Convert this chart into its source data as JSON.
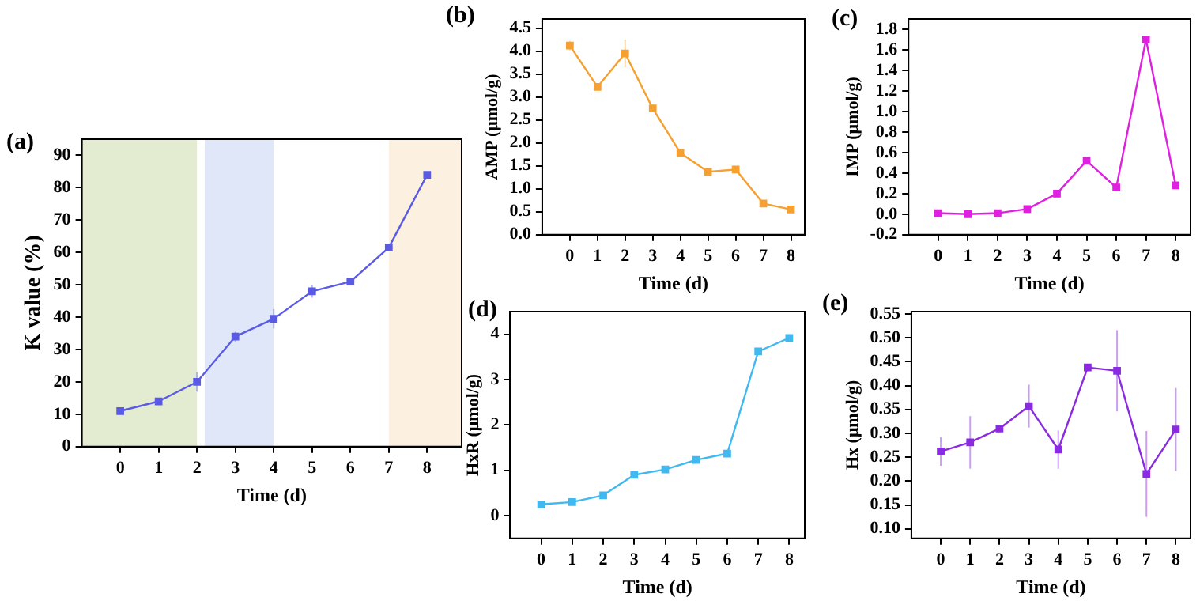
{
  "chart_data": [
    {
      "type": "line",
      "title": "(a)",
      "xlabel": "Time (d)",
      "ylabel": "K value (%)",
      "x": [
        0,
        1,
        2,
        3,
        4,
        5,
        6,
        7,
        8
      ],
      "xlim": [
        -1,
        8.9
      ],
      "xticks": [
        0,
        1,
        2,
        3,
        4,
        5,
        6,
        7,
        8
      ],
      "ylim": [
        0,
        95
      ],
      "yticks": [
        0,
        10,
        20,
        30,
        40,
        50,
        60,
        70,
        80,
        90
      ],
      "marker": "square",
      "grid": false,
      "legend": false,
      "series": [
        {
          "color": "#5a5ae6",
          "values": [
            11,
            14,
            20,
            34,
            39.5,
            48,
            51,
            61.5,
            84
          ],
          "errors": [
            1,
            1,
            3,
            1.5,
            3,
            2,
            1,
            1,
            0.5
          ]
        }
      ],
      "bands": [
        {
          "axis": "x",
          "from": -1,
          "to": 2,
          "color": "#e3ecd0"
        },
        {
          "axis": "x",
          "from": 2.2,
          "to": 4,
          "color": "#dfe7f8"
        },
        {
          "axis": "x",
          "from": 7,
          "to": 8.9,
          "color": "#fcf1e0"
        }
      ]
    },
    {
      "type": "line",
      "title": "(b)",
      "xlabel": "Time (d)",
      "ylabel": "AMP (μmol/g)",
      "x": [
        0,
        1,
        2,
        3,
        4,
        5,
        6,
        7,
        8
      ],
      "xlim": [
        -1,
        8.5
      ],
      "xticks": [
        0,
        1,
        2,
        3,
        4,
        5,
        6,
        7,
        8
      ],
      "ylim": [
        0,
        4.7
      ],
      "yticks": [
        {
          "value": 0,
          "label": "0.0"
        },
        {
          "value": 0.5,
          "label": "0.5"
        },
        {
          "value": 1,
          "label": "1.0"
        },
        {
          "value": 1.5,
          "label": "1.5"
        },
        {
          "value": 2,
          "label": "2.0"
        },
        {
          "value": 2.5,
          "label": "2.5"
        },
        {
          "value": 3,
          "label": "3.0"
        },
        {
          "value": 3.5,
          "label": "3.5"
        },
        {
          "value": 4,
          "label": "4.0"
        },
        {
          "value": 4.5,
          "label": "4.5"
        }
      ],
      "marker": "square",
      "grid": false,
      "legend": false,
      "series": [
        {
          "color": "#f5a030",
          "values": [
            4.12,
            3.22,
            3.95,
            2.75,
            1.78,
            1.37,
            1.42,
            0.68,
            0.55
          ],
          "errors": [
            0.1,
            0.05,
            0.3,
            0.08,
            0.08,
            0.05,
            0.06,
            0.05,
            0.04
          ]
        }
      ]
    },
    {
      "type": "line",
      "title": "(c)",
      "xlabel": "Time (d)",
      "ylabel": "IMP (μmol/g)",
      "x": [
        0,
        1,
        2,
        3,
        4,
        5,
        6,
        7,
        8
      ],
      "xlim": [
        -1,
        8.5
      ],
      "xticks": [
        0,
        1,
        2,
        3,
        4,
        5,
        6,
        7,
        8
      ],
      "ylim": [
        -0.2,
        1.9
      ],
      "yticks": [
        {
          "value": -0.2,
          "label": "-0.2"
        },
        {
          "value": 0,
          "label": "0.0"
        },
        {
          "value": 0.2,
          "label": "0.2"
        },
        {
          "value": 0.4,
          "label": "0.4"
        },
        {
          "value": 0.6,
          "label": "0.6"
        },
        {
          "value": 0.8,
          "label": "0.8"
        },
        {
          "value": 1,
          "label": "1.0"
        },
        {
          "value": 1.2,
          "label": "1.2"
        },
        {
          "value": 1.4,
          "label": "1.4"
        },
        {
          "value": 1.6,
          "label": "1.6"
        },
        {
          "value": 1.8,
          "label": "1.8"
        }
      ],
      "marker": "square",
      "grid": false,
      "legend": false,
      "series": [
        {
          "color": "#e020e0",
          "values": [
            0.01,
            0,
            0.01,
            0.05,
            0.2,
            0.52,
            0.26,
            1.7,
            0.28
          ],
          "errors": [
            0.01,
            0.01,
            0.01,
            0.01,
            0.02,
            0.03,
            0.04,
            0.03,
            0.02
          ]
        }
      ]
    },
    {
      "type": "line",
      "title": "(d)",
      "xlabel": "Time (d)",
      "ylabel": "HxR (μmol/g)",
      "x": [
        0,
        1,
        2,
        3,
        4,
        5,
        6,
        7,
        8
      ],
      "xlim": [
        -1,
        8.5
      ],
      "xticks": [
        0,
        1,
        2,
        3,
        4,
        5,
        6,
        7,
        8
      ],
      "ylim": [
        -0.5,
        4.5
      ],
      "yticks": [
        0,
        1,
        2,
        3,
        4
      ],
      "marker": "square",
      "grid": false,
      "legend": false,
      "series": [
        {
          "color": "#40b8f0",
          "values": [
            0.25,
            0.3,
            0.45,
            0.9,
            1.02,
            1.23,
            1.37,
            3.62,
            3.92
          ],
          "errors": [
            0.03,
            0.03,
            0.05,
            0.08,
            0.05,
            0.06,
            0.05,
            0.05,
            0.05
          ]
        }
      ]
    },
    {
      "type": "line",
      "title": "(e)",
      "xlabel": "Time (d)",
      "ylabel": "Hx (μmol/g)",
      "x": [
        0,
        1,
        2,
        3,
        4,
        5,
        6,
        7,
        8
      ],
      "xlim": [
        -1,
        8.5
      ],
      "xticks": [
        0,
        1,
        2,
        3,
        4,
        5,
        6,
        7,
        8
      ],
      "ylim": [
        0.08,
        0.555
      ],
      "yticks": [
        {
          "value": 0.1,
          "label": "0.10"
        },
        {
          "value": 0.15,
          "label": "0.15"
        },
        {
          "value": 0.2,
          "label": "0.20"
        },
        {
          "value": 0.25,
          "label": "0.25"
        },
        {
          "value": 0.3,
          "label": "0.30"
        },
        {
          "value": 0.35,
          "label": "0.35"
        },
        {
          "value": 0.4,
          "label": "0.40"
        },
        {
          "value": 0.45,
          "label": "0.45"
        },
        {
          "value": 0.5,
          "label": "0.50"
        },
        {
          "value": 0.55,
          "label": "0.55"
        }
      ],
      "marker": "square",
      "grid": false,
      "legend": false,
      "series": [
        {
          "color": "#8a2be2",
          "values": [
            0.262,
            0.281,
            0.31,
            0.357,
            0.266,
            0.438,
            0.431,
            0.215,
            0.308
          ],
          "errors": [
            0.03,
            0.055,
            0.005,
            0.045,
            0.04,
            0.005,
            0.085,
            0.09,
            0.087
          ]
        }
      ]
    }
  ]
}
